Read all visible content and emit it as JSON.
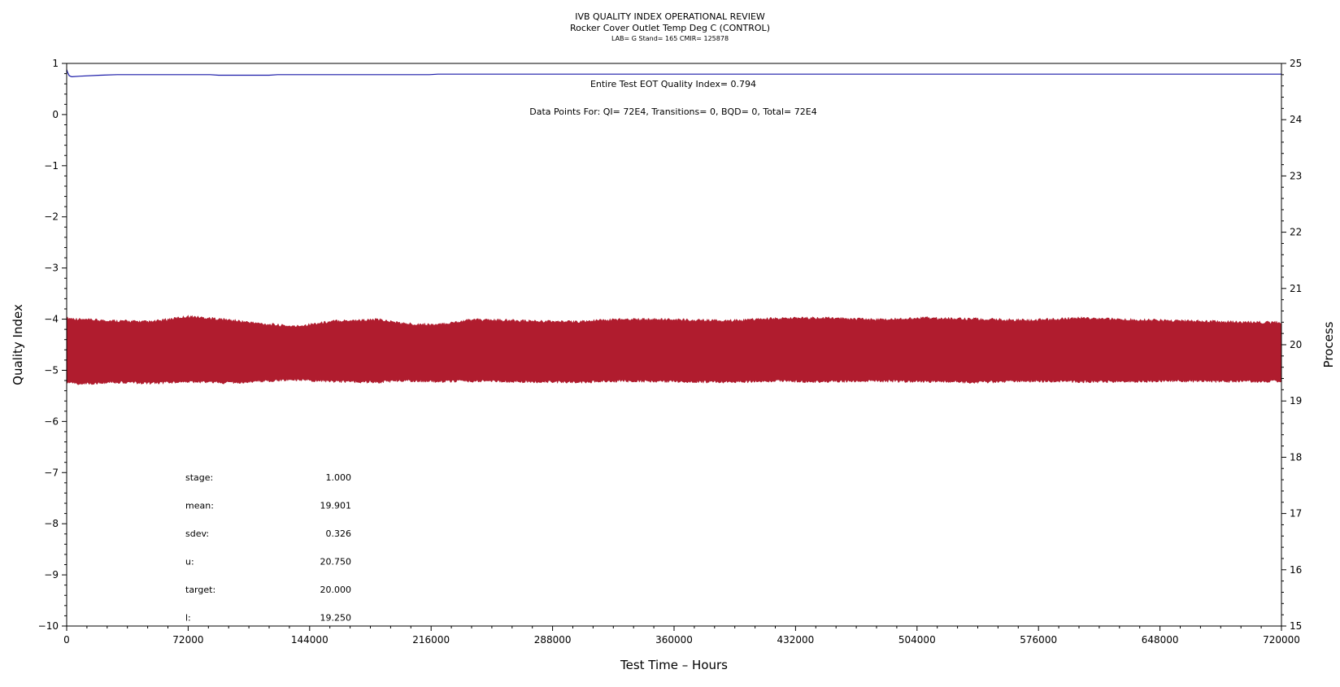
{
  "chart_data": {
    "type": "line",
    "title": "IVB QUALITY INDEX OPERATIONAL REVIEW",
    "subtitle": "Rocker Cover Outlet Temp Deg C (CONTROL)",
    "subtitle2": "LAB= G Stand= 165 CMIR= 125878",
    "xlabel": "Test Time – Hours",
    "ylabel_left": "Quality Index",
    "ylabel_right": "Process",
    "xlim": [
      0,
      720000
    ],
    "ylim_left": [
      -10,
      1
    ],
    "ylim_right": [
      15,
      25
    ],
    "x_ticks": [
      0,
      72000,
      144000,
      216000,
      288000,
      360000,
      432000,
      504000,
      576000,
      648000,
      720000
    ],
    "x_tick_labels": [
      "0",
      "72000",
      "144000",
      "216000",
      "288000",
      "360000",
      "432000",
      "504000",
      "576000",
      "648000",
      "720000"
    ],
    "y_left_ticks": [
      1,
      0,
      -1,
      -2,
      -3,
      -4,
      -5,
      -6,
      -7,
      -8,
      -9,
      -10
    ],
    "y_left_tick_labels": [
      "1",
      "0",
      "−1",
      "−2",
      "−3",
      "−4",
      "−5",
      "−6",
      "−7",
      "−8",
      "−9",
      "−10"
    ],
    "y_right_ticks": [
      25,
      24,
      23,
      22,
      21,
      20,
      19,
      18,
      17,
      16,
      15
    ],
    "y_right_tick_labels": [
      "25",
      "24",
      "23",
      "22",
      "21",
      "20",
      "19",
      "18",
      "17",
      "16",
      "15"
    ],
    "annotation_qi": "Entire Test EOT Quality Index=   0.794",
    "annotation_points": "Data Points For: QI=   72E4, Transitions=     0, BQD=     0, Total=   72E4",
    "stats": [
      {
        "label": "stage:",
        "value": "1.000"
      },
      {
        "label": "mean:",
        "value": "19.901"
      },
      {
        "label": "sdev:",
        "value": "0.326"
      },
      {
        "label": "u:",
        "value": "20.750"
      },
      {
        "label": "target:",
        "value": "20.000"
      },
      {
        "label": "l:",
        "value": "19.250"
      }
    ],
    "series": [
      {
        "axis": "left",
        "color": "#1a1aa8",
        "x": [
          0,
          500,
          1500,
          3000,
          8000,
          20000,
          30000,
          60000,
          85000,
          90000,
          120000,
          125000,
          160000,
          200000,
          215000,
          220000,
          300000,
          400000,
          500000,
          600000,
          720000
        ],
        "y": [
          0.88,
          0.83,
          0.76,
          0.74,
          0.75,
          0.77,
          0.78,
          0.78,
          0.78,
          0.77,
          0.77,
          0.78,
          0.78,
          0.78,
          0.78,
          0.79,
          0.79,
          0.79,
          0.79,
          0.79,
          0.79
        ]
      },
      {
        "axis": "right",
        "color": "#b01c2e",
        "band": true,
        "x": [
          0,
          10000,
          30000,
          50000,
          72000,
          95000,
          115000,
          135000,
          160000,
          185000,
          200000,
          220000,
          240000,
          270000,
          300000,
          330000,
          360000,
          390000,
          420000,
          450000,
          480000,
          510000,
          540000,
          570000,
          600000,
          630000,
          660000,
          690000,
          720000
        ],
        "upper": [
          20.45,
          20.42,
          20.4,
          20.38,
          20.48,
          20.42,
          20.35,
          20.3,
          20.4,
          20.42,
          20.35,
          20.33,
          20.42,
          20.4,
          20.38,
          20.43,
          20.42,
          20.4,
          20.44,
          20.45,
          20.42,
          20.45,
          20.43,
          20.41,
          20.45,
          20.42,
          20.4,
          20.38,
          20.37
        ],
        "lower": [
          19.35,
          19.33,
          19.36,
          19.34,
          19.37,
          19.35,
          19.38,
          19.4,
          19.37,
          19.36,
          19.39,
          19.37,
          19.38,
          19.37,
          19.36,
          19.38,
          19.37,
          19.36,
          19.38,
          19.37,
          19.38,
          19.37,
          19.36,
          19.38,
          19.37,
          19.37,
          19.38,
          19.37,
          19.38
        ]
      }
    ],
    "grid": false
  }
}
